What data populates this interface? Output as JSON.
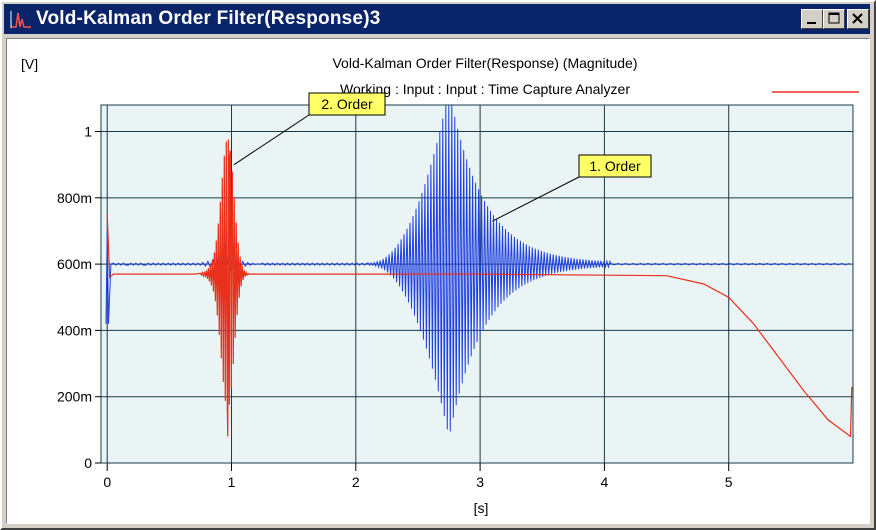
{
  "window": {
    "title": "Vold-Kalman Order Filter(Response)3",
    "app_icon": "spectrum-icon",
    "controls": [
      "minimize-icon",
      "maximize-icon",
      "close-icon"
    ]
  },
  "plot": {
    "unit_label": "[V]",
    "title_line1": "Vold-Kalman Order Filter(Response) (Magnitude)",
    "title_line2": "Working : Input : Input : Time Capture Analyzer",
    "colors": {
      "background": "#ffffff",
      "plot_area": "#eaf4f4",
      "grid": "#1a3a4a",
      "red_trace": "#e8301c",
      "blue_trace": "#2040e0",
      "label_bg": "#ffff66"
    },
    "annotations": [
      {
        "text": "2. Order",
        "series": "red",
        "at_x": 1.02,
        "at_y": 0.9
      },
      {
        "text": "1. Order",
        "series": "blue",
        "at_x": 3.1,
        "at_y": 0.73
      }
    ]
  },
  "chart_data": {
    "type": "line",
    "title": "Vold-Kalman Order Filter(Response) (Magnitude)",
    "subtitle": "Working : Input : Input : Time Capture Analyzer",
    "xlabel": "[s]",
    "ylabel": "[V]",
    "xlim": [
      -0.05,
      6.0
    ],
    "ylim": [
      0,
      1.08
    ],
    "x_ticks": [
      0,
      1,
      2,
      3,
      4,
      5
    ],
    "x_tick_labels": [
      "0",
      "1",
      "2",
      "3",
      "4",
      "5"
    ],
    "y_ticks": [
      0,
      0.2,
      0.4,
      0.6,
      0.8,
      1.0
    ],
    "y_tick_labels": [
      "0",
      "200m",
      "400m",
      "600m",
      "800m",
      "1"
    ],
    "grid": true,
    "legend": "top-right",
    "series": [
      {
        "color": "#2040e0",
        "baseline": 0.6,
        "bursts": [
          {
            "x0": 0.7,
            "x1": 1.3,
            "center": 0.95,
            "amplitude": 0.02
          },
          {
            "x0": 2.1,
            "x1": 4.05,
            "center": 2.75,
            "amplitude": 0.52
          }
        ],
        "start_spike": {
          "x": 0.0,
          "min": 0.42,
          "max": 0.7
        },
        "end_value": 0.6
      },
      {
        "color": "#e8301c",
        "baseline": 0.57,
        "points": [
          [
            0.0,
            0.75
          ],
          [
            0.02,
            0.56
          ],
          [
            0.05,
            0.57
          ],
          [
            1.0,
            0.57
          ],
          [
            3.0,
            0.57
          ],
          [
            4.5,
            0.565
          ],
          [
            4.8,
            0.54
          ],
          [
            5.0,
            0.5
          ],
          [
            5.2,
            0.42
          ],
          [
            5.4,
            0.32
          ],
          [
            5.6,
            0.22
          ],
          [
            5.8,
            0.13
          ],
          [
            5.98,
            0.08
          ],
          [
            5.99,
            0.23
          ]
        ],
        "bursts": [
          {
            "x0": 0.75,
            "x1": 1.3,
            "center": 0.97,
            "amplitude": 0.4,
            "min_dip": 0.08
          }
        ]
      }
    ],
    "annotations": [
      "2. Order",
      "1. Order"
    ]
  }
}
